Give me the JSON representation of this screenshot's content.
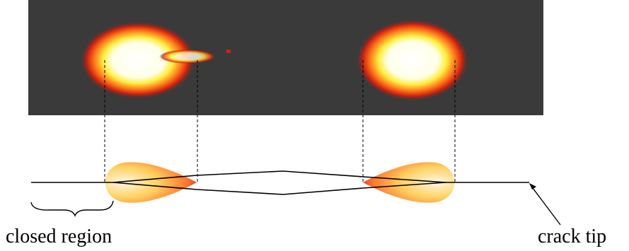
{
  "labels": {
    "closed_region": "closed region",
    "crack_tip": "crack tip"
  }
}
